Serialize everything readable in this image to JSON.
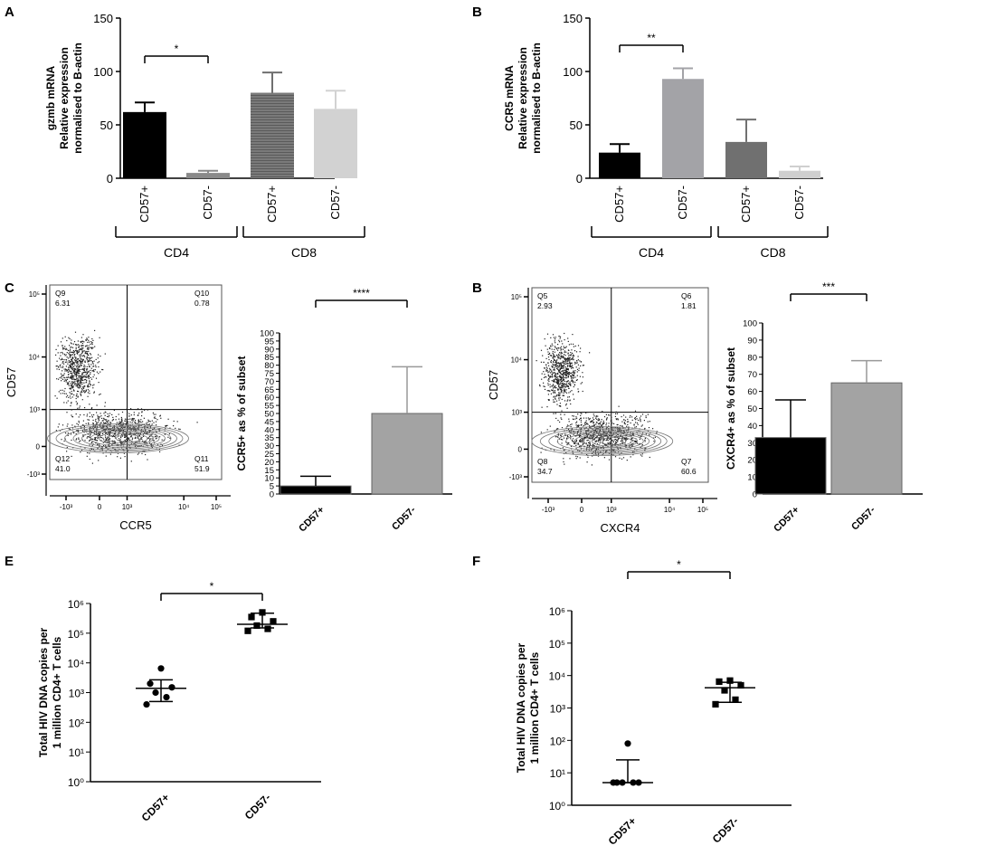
{
  "panels": {
    "A": {
      "letter": "A",
      "ylabel": [
        "gzmb mRNA",
        "Relative expression",
        "normalised to B-actin"
      ],
      "ylim": [
        0,
        150
      ],
      "yticks": [
        0,
        50,
        100,
        150
      ],
      "categories": [
        "CD57+",
        "CD57-",
        "CD57+",
        "CD57-"
      ],
      "values": [
        62,
        5,
        80,
        65
      ],
      "errors": [
        9,
        2,
        19,
        17
      ],
      "colors": [
        "#000000",
        "#8a8a8a",
        "#6f6f6f",
        "#d2d2d2"
      ],
      "stripes": [
        false,
        false,
        true,
        false
      ],
      "groups": [
        {
          "label": "CD4",
          "from": 0,
          "to": 1
        },
        {
          "label": "CD8",
          "from": 2,
          "to": 3
        }
      ],
      "significance": [
        {
          "from": 0,
          "to": 1,
          "label": "*"
        }
      ]
    },
    "B_top": {
      "letter": "B",
      "ylabel": [
        "CCR5 mRNA",
        "Relative expression",
        "normalised to B-actin"
      ],
      "ylim": [
        0,
        150
      ],
      "yticks": [
        0,
        50,
        100,
        150
      ],
      "categories": [
        "CD57+",
        "CD57-",
        "CD57+",
        "CD57-"
      ],
      "values": [
        24,
        93,
        34,
        7
      ],
      "errors": [
        8,
        10,
        21,
        4
      ],
      "colors": [
        "#000000",
        "#a3a3a7",
        "#707070",
        "#cfcfcf"
      ],
      "stripes": [
        false,
        false,
        false,
        false
      ],
      "groups": [
        {
          "label": "CD4",
          "from": 0,
          "to": 1
        },
        {
          "label": "CD8",
          "from": 2,
          "to": 3
        }
      ],
      "significance": [
        {
          "from": 0,
          "to": 1,
          "label": "**"
        }
      ]
    },
    "C_flow": {
      "letter": "C",
      "xlabel": "CCR5",
      "ylabel": "CD57",
      "xticks": [
        "-10³",
        "0",
        "10³",
        "10⁴",
        "10⁵"
      ],
      "yticks": [
        "-10³",
        "0",
        "10³",
        "10⁴",
        "10⁵"
      ],
      "quadrants": [
        {
          "name": "Q9",
          "value": "6.31"
        },
        {
          "name": "Q10",
          "value": "0.78"
        },
        {
          "name": "Q12",
          "value": "41.0"
        },
        {
          "name": "Q11",
          "value": "51.9"
        }
      ]
    },
    "C_bar": {
      "ylabel": "CCR5+ as % of subset",
      "ylim": [
        0,
        100
      ],
      "yticks": [
        0,
        5,
        10,
        15,
        20,
        25,
        30,
        35,
        40,
        45,
        50,
        55,
        60,
        65,
        70,
        75,
        80,
        85,
        90,
        95,
        100
      ],
      "categories": [
        "CD57+",
        "CD57-"
      ],
      "values": [
        5,
        50
      ],
      "errors": [
        6,
        29
      ],
      "colors": [
        "#000000",
        "#a3a3a3"
      ],
      "significance": [
        {
          "from": 0,
          "to": 1,
          "label": "****"
        }
      ]
    },
    "B_flow": {
      "letter": "B",
      "xlabel": "CXCR4",
      "ylabel": "CD57",
      "xticks": [
        "-10³",
        "0",
        "10³",
        "10⁴",
        "10⁵"
      ],
      "yticks": [
        "-10³",
        "0",
        "10³",
        "10⁴",
        "10⁵"
      ],
      "quadrants": [
        {
          "name": "Q5",
          "value": "2.93"
        },
        {
          "name": "Q6",
          "value": "1.81"
        },
        {
          "name": "Q8",
          "value": "34.7"
        },
        {
          "name": "Q7",
          "value": "60.6"
        }
      ]
    },
    "B_bar": {
      "ylabel": "CXCR4+ as % of subset",
      "ylim": [
        0,
        100
      ],
      "yticks": [
        0,
        10,
        20,
        30,
        40,
        50,
        60,
        70,
        80,
        90,
        100
      ],
      "categories": [
        "CD57+",
        "CD57-"
      ],
      "values": [
        33,
        65
      ],
      "errors": [
        22,
        13
      ],
      "colors": [
        "#000000",
        "#a3a3a3"
      ],
      "significance": [
        {
          "from": 0,
          "to": 1,
          "label": "***"
        }
      ]
    },
    "E": {
      "letter": "E",
      "ylabel": [
        "Total HIV DNA copies per",
        "1 million CD4+ T cells"
      ],
      "ylim_log": [
        0,
        6
      ],
      "yticks": [
        "10⁰",
        "10¹",
        "10²",
        "10³",
        "10⁴",
        "10⁵",
        "10⁶"
      ],
      "categories": [
        "CD57+",
        "CD57-"
      ],
      "significance": [
        {
          "from": 0,
          "to": 1,
          "label": "*"
        }
      ]
    },
    "F": {
      "letter": "F",
      "ylabel": [
        "Total HIV DNA copies per",
        "1 million CD4+ T cells"
      ],
      "ylim_log": [
        0,
        6
      ],
      "yticks": [
        "10⁰",
        "10¹",
        "10²",
        "10³",
        "10⁴",
        "10⁵",
        "10⁶"
      ],
      "categories": [
        "CD57+",
        "CD57-"
      ],
      "significance": [
        {
          "from": 0,
          "to": 1,
          "label": "*"
        }
      ]
    }
  },
  "chart_data": [
    {
      "panel": "A",
      "type": "bar",
      "title": "",
      "ylabel": "gzmb mRNA Relative expression normalised to B-actin",
      "categories": [
        "CD4 CD57+",
        "CD4 CD57-",
        "CD8 CD57+",
        "CD8 CD57-"
      ],
      "values": [
        62,
        5,
        80,
        65
      ],
      "errors": [
        9,
        2,
        19,
        17
      ],
      "ylim": [
        0,
        150
      ]
    },
    {
      "panel": "B",
      "type": "bar",
      "title": "",
      "ylabel": "CCR5 mRNA Relative expression normalised to B-actin",
      "categories": [
        "CD4 CD57+",
        "CD4 CD57-",
        "CD8 CD57+",
        "CD8 CD57-"
      ],
      "values": [
        24,
        93,
        34,
        7
      ],
      "errors": [
        8,
        10,
        21,
        4
      ],
      "ylim": [
        0,
        150
      ]
    },
    {
      "panel": "C",
      "type": "scatter",
      "xlabel": "CCR5",
      "ylabel": "CD57",
      "quadrants": {
        "Q9": 6.31,
        "Q10": 0.78,
        "Q12": 41.0,
        "Q11": 51.9
      }
    },
    {
      "panel": "C",
      "type": "bar",
      "ylabel": "CCR5+ as % of subset",
      "categories": [
        "CD57+",
        "CD57-"
      ],
      "values": [
        5,
        50
      ],
      "errors": [
        6,
        29
      ],
      "ylim": [
        0,
        100
      ]
    },
    {
      "panel": "B",
      "type": "scatter",
      "xlabel": "CXCR4",
      "ylabel": "CD57",
      "quadrants": {
        "Q5": 2.93,
        "Q6": 1.81,
        "Q8": 34.7,
        "Q7": 60.6
      }
    },
    {
      "panel": "B",
      "type": "bar",
      "ylabel": "CXCR4+ as % of subset",
      "categories": [
        "CD57+",
        "CD57-"
      ],
      "values": [
        33,
        65
      ],
      "errors": [
        22,
        13
      ],
      "ylim": [
        0,
        100
      ]
    },
    {
      "panel": "E",
      "type": "scatter",
      "ylabel": "Total HIV DNA copies per 1 million CD4+ T cells",
      "yscale": "log",
      "categories": [
        "CD57+",
        "CD57-"
      ],
      "series": [
        {
          "name": "CD57+",
          "values": [
            6500,
            2000,
            1500,
            1000,
            700,
            400
          ]
        },
        {
          "name": "CD57-",
          "values": [
            500000,
            350000,
            250000,
            180000,
            140000,
            120000
          ]
        }
      ],
      "summary": [
        {
          "median": 1400,
          "low": 500,
          "high": 2700
        },
        {
          "median": 200000,
          "low": 150000,
          "high": 470000
        }
      ],
      "ylim": [
        1,
        1000000
      ]
    },
    {
      "panel": "F",
      "type": "scatter",
      "ylabel": "Total HIV DNA copies per 1 million CD4+ T cells",
      "yscale": "log",
      "categories": [
        "CD57+",
        "CD57-"
      ],
      "series": [
        {
          "name": "CD57+",
          "values": [
            80,
            5,
            5,
            5,
            5,
            5
          ]
        },
        {
          "name": "CD57-",
          "values": [
            7000,
            6500,
            5000,
            3500,
            1800,
            1300
          ]
        }
      ],
      "summary": [
        {
          "median": 5,
          "low": 5,
          "high": 25
        },
        {
          "median": 4200,
          "low": 1500,
          "high": 6200
        }
      ],
      "ylim": [
        1,
        1000000
      ]
    }
  ]
}
